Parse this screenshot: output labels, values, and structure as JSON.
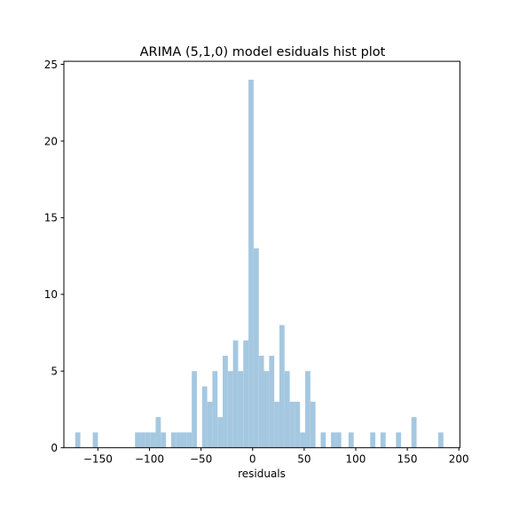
{
  "chart_data": {
    "type": "bar",
    "title": "ARIMA (5,1,0) model esiduals hist plot",
    "xlabel": "residuals",
    "ylabel": "",
    "xlim": [
      -183,
      201
    ],
    "ylim": [
      0,
      25.2
    ],
    "xticks": [
      -150,
      -100,
      -50,
      0,
      50,
      100,
      150,
      200
    ],
    "yticks": [
      0,
      5,
      10,
      15,
      20,
      25
    ],
    "bar_color": "#a5c8e1",
    "grid": false,
    "bins": [
      {
        "x0": -172.0,
        "x1": -167.0,
        "count": 1
      },
      {
        "x0": -155.0,
        "x1": -150.0,
        "count": 1
      },
      {
        "x0": -114.0,
        "x1": -109.0,
        "count": 1
      },
      {
        "x0": -109.0,
        "x1": -104.0,
        "count": 1
      },
      {
        "x0": -104.0,
        "x1": -99.0,
        "count": 1
      },
      {
        "x0": -99.0,
        "x1": -94.0,
        "count": 1
      },
      {
        "x0": -94.0,
        "x1": -89.0,
        "count": 2
      },
      {
        "x0": -89.0,
        "x1": -84.0,
        "count": 1
      },
      {
        "x0": -79.0,
        "x1": -74.0,
        "count": 1
      },
      {
        "x0": -74.0,
        "x1": -69.0,
        "count": 1
      },
      {
        "x0": -69.0,
        "x1": -64.0,
        "count": 1
      },
      {
        "x0": -64.0,
        "x1": -59.0,
        "count": 1
      },
      {
        "x0": -59.0,
        "x1": -54.0,
        "count": 5
      },
      {
        "x0": -49.0,
        "x1": -44.0,
        "count": 4
      },
      {
        "x0": -44.0,
        "x1": -39.0,
        "count": 3
      },
      {
        "x0": -39.0,
        "x1": -34.0,
        "count": 5
      },
      {
        "x0": -34.0,
        "x1": -29.0,
        "count": 2
      },
      {
        "x0": -29.0,
        "x1": -24.0,
        "count": 6
      },
      {
        "x0": -24.0,
        "x1": -19.0,
        "count": 5
      },
      {
        "x0": -19.0,
        "x1": -14.0,
        "count": 7
      },
      {
        "x0": -14.0,
        "x1": -9.0,
        "count": 5
      },
      {
        "x0": -9.0,
        "x1": -4.0,
        "count": 7
      },
      {
        "x0": -4.0,
        "x1": 1.0,
        "count": 24
      },
      {
        "x0": 1.0,
        "x1": 6.0,
        "count": 13
      },
      {
        "x0": 6.0,
        "x1": 11.0,
        "count": 6
      },
      {
        "x0": 11.0,
        "x1": 16.0,
        "count": 5
      },
      {
        "x0": 16.0,
        "x1": 21.0,
        "count": 6
      },
      {
        "x0": 21.0,
        "x1": 26.0,
        "count": 3
      },
      {
        "x0": 26.0,
        "x1": 31.0,
        "count": 8
      },
      {
        "x0": 31.0,
        "x1": 36.0,
        "count": 5
      },
      {
        "x0": 36.0,
        "x1": 41.0,
        "count": 3
      },
      {
        "x0": 41.0,
        "x1": 46.0,
        "count": 3
      },
      {
        "x0": 46.0,
        "x1": 51.0,
        "count": 1
      },
      {
        "x0": 51.0,
        "x1": 56.0,
        "count": 5
      },
      {
        "x0": 56.0,
        "x1": 61.0,
        "count": 3
      },
      {
        "x0": 66.0,
        "x1": 71.0,
        "count": 1
      },
      {
        "x0": 76.0,
        "x1": 81.0,
        "count": 1
      },
      {
        "x0": 81.0,
        "x1": 86.0,
        "count": 1
      },
      {
        "x0": 93.0,
        "x1": 98.0,
        "count": 1
      },
      {
        "x0": 114.0,
        "x1": 119.0,
        "count": 1
      },
      {
        "x0": 124.0,
        "x1": 129.0,
        "count": 1
      },
      {
        "x0": 139.0,
        "x1": 144.0,
        "count": 1
      },
      {
        "x0": 154.0,
        "x1": 159.0,
        "count": 2
      },
      {
        "x0": 180.0,
        "x1": 185.0,
        "count": 1
      }
    ]
  }
}
